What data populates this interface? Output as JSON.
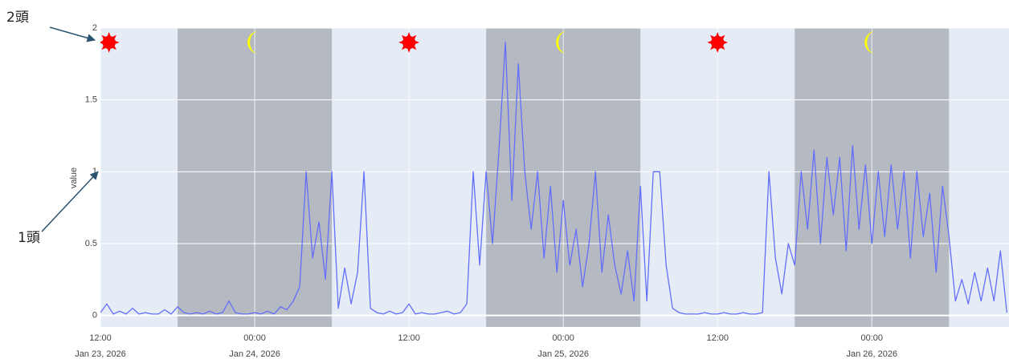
{
  "chart_data": {
    "type": "line",
    "y_label": "value",
    "color": "#636efa",
    "plot_background": "#e5ecf6",
    "grid": true,
    "x": [
      "2026-01-23 12:00",
      "2026-01-23 12:30",
      "2026-01-23 13:00",
      "2026-01-23 13:30",
      "2026-01-23 14:00",
      "2026-01-23 14:30",
      "2026-01-23 15:00",
      "2026-01-23 15:30",
      "2026-01-23 16:00",
      "2026-01-23 16:30",
      "2026-01-23 17:00",
      "2026-01-23 17:30",
      "2026-01-23 18:00",
      "2026-01-23 18:30",
      "2026-01-23 19:00",
      "2026-01-23 19:30",
      "2026-01-23 20:00",
      "2026-01-23 20:30",
      "2026-01-23 21:00",
      "2026-01-23 21:30",
      "2026-01-23 22:00",
      "2026-01-23 22:30",
      "2026-01-23 23:00",
      "2026-01-23 23:30",
      "2026-01-24 00:00",
      "2026-01-24 00:30",
      "2026-01-24 01:00",
      "2026-01-24 01:30",
      "2026-01-24 02:00",
      "2026-01-24 02:30",
      "2026-01-24 03:00",
      "2026-01-24 03:30",
      "2026-01-24 04:00",
      "2026-01-24 04:30",
      "2026-01-24 05:00",
      "2026-01-24 05:30",
      "2026-01-24 06:00",
      "2026-01-24 06:30",
      "2026-01-24 07:00",
      "2026-01-24 07:30",
      "2026-01-24 08:00",
      "2026-01-24 08:30",
      "2026-01-24 09:00",
      "2026-01-24 09:30",
      "2026-01-24 10:00",
      "2026-01-24 10:30",
      "2026-01-24 11:00",
      "2026-01-24 11:30",
      "2026-01-24 12:00",
      "2026-01-24 12:30",
      "2026-01-24 13:00",
      "2026-01-24 13:30",
      "2026-01-24 14:00",
      "2026-01-24 14:30",
      "2026-01-24 15:00",
      "2026-01-24 15:30",
      "2026-01-24 16:00",
      "2026-01-24 16:30",
      "2026-01-24 17:00",
      "2026-01-24 17:30",
      "2026-01-24 18:00",
      "2026-01-24 18:30",
      "2026-01-24 19:00",
      "2026-01-24 19:30",
      "2026-01-24 20:00",
      "2026-01-24 20:30",
      "2026-01-24 21:00",
      "2026-01-24 21:30",
      "2026-01-24 22:00",
      "2026-01-24 22:30",
      "2026-01-24 23:00",
      "2026-01-24 23:30",
      "2026-01-25 00:00",
      "2026-01-25 00:30",
      "2026-01-25 01:00",
      "2026-01-25 01:30",
      "2026-01-25 02:00",
      "2026-01-25 02:30",
      "2026-01-25 03:00",
      "2026-01-25 03:30",
      "2026-01-25 04:00",
      "2026-01-25 04:30",
      "2026-01-25 05:00",
      "2026-01-25 05:30",
      "2026-01-25 06:00",
      "2026-01-25 06:30",
      "2026-01-25 07:00",
      "2026-01-25 07:30",
      "2026-01-25 08:00",
      "2026-01-25 08:30",
      "2026-01-25 09:00",
      "2026-01-25 09:30",
      "2026-01-25 10:00",
      "2026-01-25 10:30",
      "2026-01-25 11:00",
      "2026-01-25 11:30",
      "2026-01-25 12:00",
      "2026-01-25 12:30",
      "2026-01-25 13:00",
      "2026-01-25 13:30",
      "2026-01-25 14:00",
      "2026-01-25 14:30",
      "2026-01-25 15:00",
      "2026-01-25 15:30",
      "2026-01-25 16:00",
      "2026-01-25 16:30",
      "2026-01-25 17:00",
      "2026-01-25 17:30",
      "2026-01-25 18:00",
      "2026-01-25 18:30",
      "2026-01-25 19:00",
      "2026-01-25 19:30",
      "2026-01-25 20:00",
      "2026-01-25 20:30",
      "2026-01-25 21:00",
      "2026-01-25 21:30",
      "2026-01-25 22:00",
      "2026-01-25 22:30",
      "2026-01-25 23:00",
      "2026-01-25 23:30",
      "2026-01-26 00:00",
      "2026-01-26 00:30",
      "2026-01-26 01:00",
      "2026-01-26 01:30",
      "2026-01-26 02:00",
      "2026-01-26 02:30",
      "2026-01-26 03:00",
      "2026-01-26 03:30",
      "2026-01-26 04:00",
      "2026-01-26 04:30",
      "2026-01-26 05:00",
      "2026-01-26 05:30",
      "2026-01-26 06:00",
      "2026-01-26 06:30",
      "2026-01-26 07:00",
      "2026-01-26 07:30",
      "2026-01-26 08:00",
      "2026-01-26 08:30",
      "2026-01-26 09:00",
      "2026-01-26 09:30",
      "2026-01-26 10:00",
      "2026-01-26 10:30"
    ],
    "values": [
      0.02,
      0.08,
      0.01,
      0.03,
      0.01,
      0.05,
      0.01,
      0.02,
      0.01,
      0.01,
      0.04,
      0.01,
      0.06,
      0.02,
      0.01,
      0.02,
      0.01,
      0.03,
      0.01,
      0.02,
      0.1,
      0.02,
      0.01,
      0.01,
      0.02,
      0.01,
      0.03,
      0.01,
      0.06,
      0.04,
      0.1,
      0.2,
      1.0,
      0.4,
      0.65,
      0.25,
      1.0,
      0.05,
      0.33,
      0.08,
      0.3,
      1.0,
      0.05,
      0.02,
      0.01,
      0.03,
      0.01,
      0.02,
      0.08,
      0.01,
      0.02,
      0.01,
      0.01,
      0.02,
      0.03,
      0.01,
      0.02,
      0.08,
      1.0,
      0.35,
      1.0,
      0.5,
      1.15,
      1.9,
      0.8,
      1.75,
      1.0,
      0.6,
      1.0,
      0.4,
      0.9,
      0.3,
      0.8,
      0.35,
      0.6,
      0.2,
      0.5,
      1.0,
      0.3,
      0.7,
      0.35,
      0.15,
      0.45,
      0.1,
      0.9,
      0.1,
      1.0,
      1.0,
      0.35,
      0.05,
      0.02,
      0.01,
      0.01,
      0.01,
      0.02,
      0.01,
      0.01,
      0.02,
      0.01,
      0.01,
      0.02,
      0.01,
      0.01,
      0.02,
      1.0,
      0.4,
      0.15,
      0.5,
      0.35,
      1.0,
      0.6,
      1.15,
      0.5,
      1.1,
      0.7,
      1.1,
      0.45,
      1.18,
      0.6,
      1.05,
      0.5,
      1.0,
      0.55,
      1.05,
      0.6,
      1.0,
      0.4,
      1.0,
      0.55,
      0.85,
      0.3,
      0.9,
      0.55,
      0.1,
      0.25,
      0.08,
      0.3,
      0.1,
      0.33,
      0.1,
      0.45,
      0.02
    ],
    "xlim": [
      "2026-01-23 12:00",
      "2026-01-26 10:40"
    ],
    "ylim": [
      -0.08,
      2
    ],
    "yticks": [
      0,
      0.5,
      1,
      1.5,
      2
    ],
    "xticks": [
      {
        "value": "2026-01-23 12:00",
        "label": [
          "12:00",
          "Jan 23, 2026"
        ]
      },
      {
        "value": "2026-01-24 00:00",
        "label": [
          "00:00",
          "Jan 24, 2026"
        ]
      },
      {
        "value": "2026-01-24 12:00",
        "label": [
          "12:00"
        ]
      },
      {
        "value": "2026-01-25 00:00",
        "label": [
          "00:00",
          "Jan 25, 2026"
        ]
      },
      {
        "value": "2026-01-25 12:00",
        "label": [
          "12:00"
        ]
      },
      {
        "value": "2026-01-26 00:00",
        "label": [
          "00:00",
          "Jan 26, 2026"
        ]
      }
    ],
    "night_periods": [
      [
        "2026-01-23 18:00",
        "2026-01-24 06:00"
      ],
      [
        "2026-01-24 18:00",
        "2026-01-25 06:00"
      ],
      [
        "2026-01-25 18:00",
        "2026-01-26 06:00"
      ]
    ],
    "night_color": "#b5bac2",
    "icons": [
      {
        "symbol": "sun",
        "x": "2026-01-23 12:40",
        "y": 1.9
      },
      {
        "symbol": "moon",
        "x": "2026-01-24 00:00",
        "y": 1.9
      },
      {
        "symbol": "sun",
        "x": "2026-01-24 12:00",
        "y": 1.9
      },
      {
        "symbol": "moon",
        "x": "2026-01-25 00:00",
        "y": 1.9
      },
      {
        "symbol": "sun",
        "x": "2026-01-25 12:00",
        "y": 1.9
      },
      {
        "symbol": "moon",
        "x": "2026-01-26 00:00",
        "y": 1.9
      }
    ],
    "annotations": [
      {
        "text": "2頭",
        "y": 2
      },
      {
        "text": "1頭",
        "y": 1
      }
    ]
  }
}
